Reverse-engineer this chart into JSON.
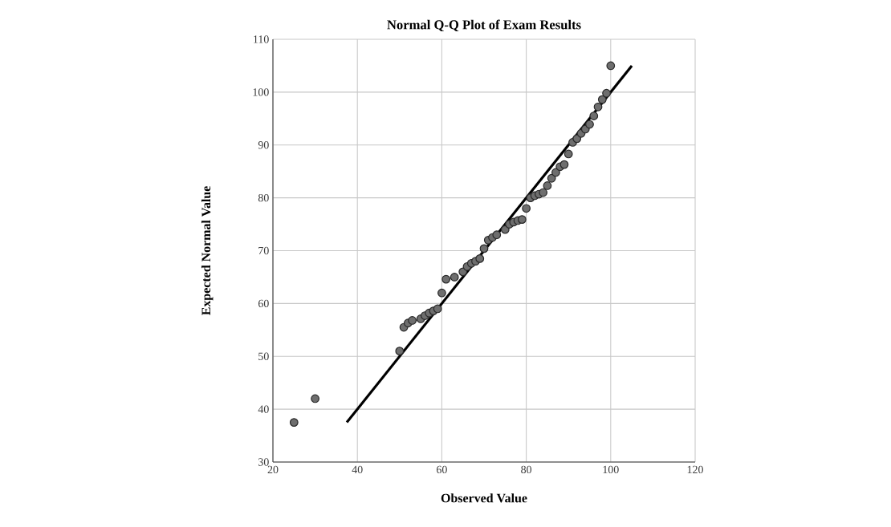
{
  "chart_data": {
    "type": "scatter",
    "title": "Normal Q-Q Plot of Exam Results",
    "xlabel": "Observed Value",
    "ylabel": "Expected Normal Value",
    "xlim": [
      20,
      120
    ],
    "xticks": [
      20,
      40,
      60,
      80,
      100,
      120
    ],
    "ylim": [
      30,
      110
    ],
    "yticks": [
      30,
      40,
      50,
      60,
      70,
      80,
      90,
      100,
      110
    ],
    "grid": true,
    "series": [
      {
        "marker": "circle",
        "color": "#6e6e6e",
        "x": [
          25,
          30,
          50,
          51,
          52,
          53,
          55,
          56,
          57,
          58,
          59,
          60,
          61,
          63,
          65,
          66,
          67,
          68,
          69,
          70,
          71,
          72,
          73,
          75,
          76,
          77,
          78,
          79,
          80,
          81,
          82,
          83,
          84,
          85,
          86,
          87,
          88,
          89,
          90,
          91,
          92,
          93,
          94,
          95,
          96,
          97,
          98,
          99,
          100
        ],
        "values": [
          37.5,
          42,
          51,
          55.5,
          56.3,
          56.8,
          57.1,
          57.7,
          58.2,
          58.6,
          59,
          62,
          64.6,
          65,
          66,
          67,
          67.6,
          68,
          68.5,
          70.4,
          72,
          72.5,
          73,
          74,
          75,
          75.4,
          75.7,
          75.9,
          78,
          80,
          80.4,
          80.7,
          81,
          82.3,
          83.7,
          84.8,
          85.9,
          86.3,
          88.3,
          90.5,
          91.2,
          92.2,
          93,
          93.9,
          95.5,
          97.2,
          98.6,
          99.8,
          105
        ]
      },
      {
        "type": "line",
        "marker": "none",
        "color": "#000000",
        "x": [
          37.5,
          105
        ],
        "values": [
          37.5,
          105
        ]
      }
    ]
  }
}
